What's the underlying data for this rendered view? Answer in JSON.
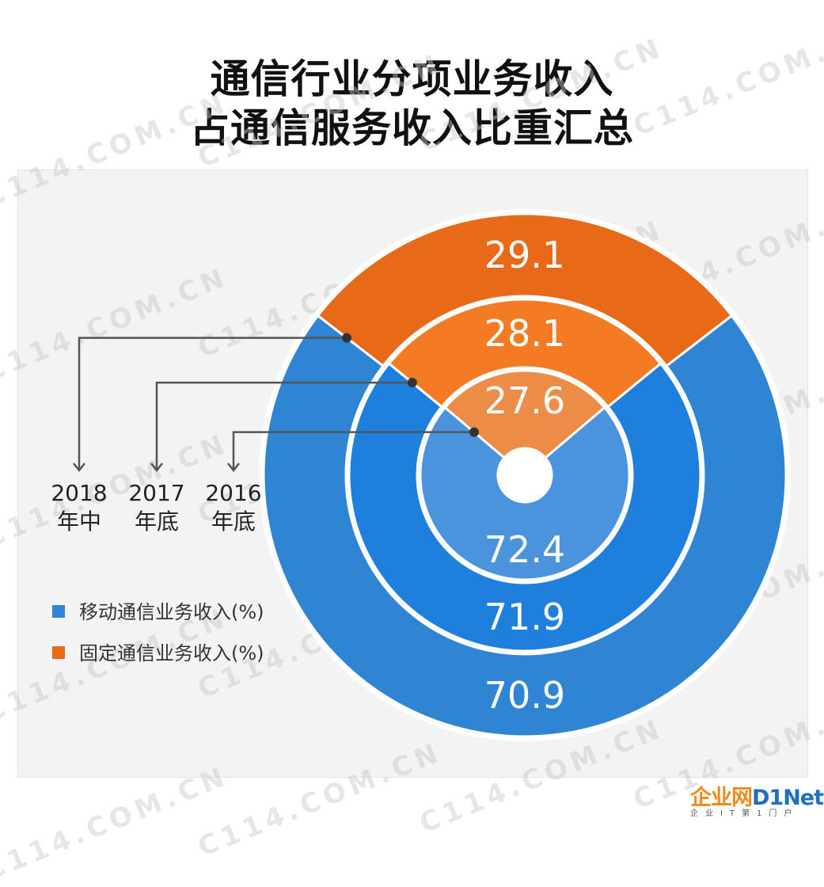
{
  "title_lines": [
    "通信行业分项业务收入",
    "占通信服务收入比重汇总"
  ],
  "watermark": "C114.COM.CN",
  "brand": {
    "name_cn": "企业网",
    "name_en": "D1Net",
    "slogan": "企业IT第1门户"
  },
  "colors": {
    "mobile_outer": "#2f84d3",
    "mobile_middle": "#1e7fdd",
    "mobile_inner": "#4a94dd",
    "fixed_outer": "#e86a19",
    "fixed_middle": "#f37b23",
    "fixed_inner": "#ec8c47",
    "connector": "#555555",
    "panel": "#f3f3f3"
  },
  "chart_data": {
    "type": "pie",
    "subtype": "nested-donut",
    "rings": [
      {
        "label_lines": [
          "2016",
          "年底"
        ],
        "position": "inner",
        "values": {
          "mobile": 72.4,
          "fixed": 27.6
        }
      },
      {
        "label_lines": [
          "2017",
          "年底"
        ],
        "position": "middle",
        "values": {
          "mobile": 71.9,
          "fixed": 28.1
        }
      },
      {
        "label_lines": [
          "2018",
          "年中"
        ],
        "position": "outer",
        "values": {
          "mobile": 70.9,
          "fixed": 29.1
        }
      }
    ],
    "series": [
      {
        "key": "mobile",
        "name": "移动通信业务收入(%)"
      },
      {
        "key": "fixed",
        "name": "固定通信业务收入(%)"
      }
    ],
    "legend_position": "left"
  }
}
